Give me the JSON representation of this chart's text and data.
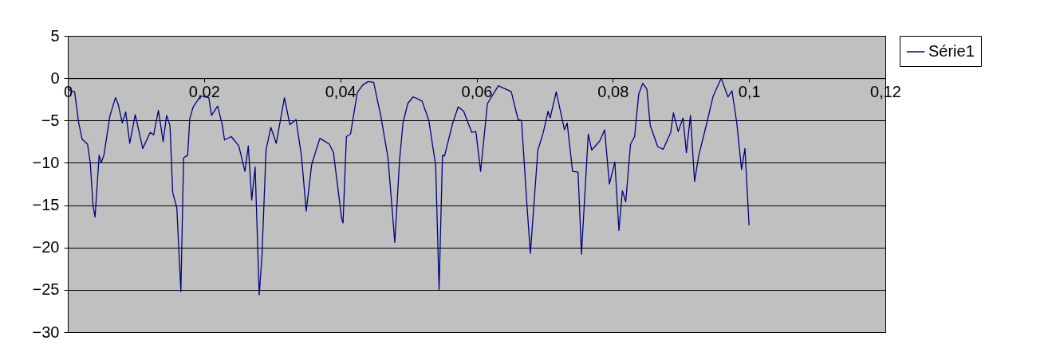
{
  "chart_data": {
    "type": "line",
    "xlim": [
      0,
      0.12
    ],
    "xticks": [
      {
        "value": 0,
        "label": "0"
      },
      {
        "value": 0.02,
        "label": "0,02"
      },
      {
        "value": 0.04,
        "label": "0,04"
      },
      {
        "value": 0.06,
        "label": "0,06"
      },
      {
        "value": 0.08,
        "label": "0,08"
      },
      {
        "value": 0.1,
        "label": "0,1"
      },
      {
        "value": 0.12,
        "label": "0,12"
      }
    ],
    "ylim": [
      -30,
      5
    ],
    "yticks": [
      -30,
      -25,
      -20,
      -15,
      -10,
      -5,
      0,
      5
    ],
    "grid": "y",
    "legend": "right",
    "marker": "none",
    "line_style": "solid",
    "series": [
      {
        "name": "Série1",
        "color": "#000080",
        "x": [
          0,
          0.0004,
          0.001,
          0.0016,
          0.0021,
          0.0029,
          0.0033,
          0.0037,
          0.004,
          0.0043,
          0.0046,
          0.0049,
          0.0053,
          0.0062,
          0.007,
          0.0074,
          0.008,
          0.0085,
          0.0091,
          0.0099,
          0.011,
          0.0121,
          0.0126,
          0.0133,
          0.014,
          0.0145,
          0.015,
          0.0154,
          0.016,
          0.0166,
          0.017,
          0.0176,
          0.0179,
          0.0184,
          0.0195,
          0.0207,
          0.0211,
          0.022,
          0.0227,
          0.023,
          0.024,
          0.0251,
          0.026,
          0.0265,
          0.027,
          0.0275,
          0.0281,
          0.0285,
          0.0291,
          0.0298,
          0.0306,
          0.0318,
          0.0326,
          0.0335,
          0.0343,
          0.035,
          0.0358,
          0.037,
          0.0384,
          0.039,
          0.0402,
          0.0404,
          0.0409,
          0.0415,
          0.0425,
          0.0433,
          0.0441,
          0.0449,
          0.046,
          0.047,
          0.048,
          0.0487,
          0.0492,
          0.0499,
          0.0507,
          0.052,
          0.053,
          0.054,
          0.0545,
          0.055,
          0.0553,
          0.0565,
          0.0573,
          0.0581,
          0.0593,
          0.0599,
          0.0606,
          0.0616,
          0.0632,
          0.0651,
          0.0661,
          0.0666,
          0.0674,
          0.0679,
          0.069,
          0.0698,
          0.0705,
          0.0708,
          0.0717,
          0.0729,
          0.0733,
          0.0741,
          0.0749,
          0.0754,
          0.0764,
          0.0769,
          0.0781,
          0.0788,
          0.0795,
          0.0803,
          0.0809,
          0.0814,
          0.0819,
          0.0826,
          0.0832,
          0.0838,
          0.0844,
          0.085,
          0.0855,
          0.0866,
          0.0874,
          0.0885,
          0.0889,
          0.0896,
          0.0903,
          0.0908,
          0.0914,
          0.092,
          0.0926,
          0.0938,
          0.0947,
          0.0959,
          0.0969,
          0.0975,
          0.0982,
          0.0989,
          0.0994,
          0.1
        ],
        "values": [
          -1.1,
          -1.5,
          -1.6,
          -5.3,
          -7.2,
          -7.8,
          -10.0,
          -15.0,
          -16.4,
          -12.8,
          -9.1,
          -10.0,
          -9.1,
          -4.4,
          -2.3,
          -3.1,
          -5.3,
          -4.0,
          -7.7,
          -4.3,
          -8.3,
          -6.4,
          -6.7,
          -3.8,
          -7.5,
          -4.4,
          -5.6,
          -13.5,
          -15.3,
          -25.2,
          -9.4,
          -9.1,
          -4.8,
          -3.4,
          -2.1,
          -2.3,
          -4.4,
          -3.3,
          -5.6,
          -7.3,
          -6.9,
          -8.0,
          -11.0,
          -8.0,
          -14.4,
          -10.5,
          -25.6,
          -21.0,
          -8.5,
          -5.8,
          -7.7,
          -2.3,
          -5.5,
          -4.9,
          -9.2,
          -15.7,
          -10.2,
          -7.1,
          -7.8,
          -8.8,
          -16.6,
          -17.1,
          -6.9,
          -6.6,
          -1.7,
          -0.8,
          -0.4,
          -0.5,
          -4.7,
          -9.4,
          -19.4,
          -9.7,
          -5.3,
          -3.0,
          -2.2,
          -2.7,
          -5.0,
          -10.3,
          -25.0,
          -9.1,
          -9.2,
          -5.3,
          -3.4,
          -3.9,
          -6.4,
          -6.3,
          -11.0,
          -3.0,
          -0.9,
          -1.6,
          -4.9,
          -5.0,
          -15.0,
          -20.7,
          -8.5,
          -6.4,
          -3.9,
          -4.7,
          -1.6,
          -6.1,
          -5.3,
          -11.0,
          -11.1,
          -20.8,
          -6.6,
          -8.5,
          -7.4,
          -6.1,
          -12.5,
          -9.9,
          -18.0,
          -13.3,
          -14.6,
          -7.8,
          -6.9,
          -1.9,
          -0.6,
          -1.3,
          -5.6,
          -8.1,
          -8.4,
          -6.4,
          -4.1,
          -6.3,
          -4.7,
          -8.8,
          -4.4,
          -12.2,
          -9.2,
          -5.3,
          -2.2,
          0.0,
          -2.2,
          -1.5,
          -5.3,
          -10.8,
          -8.3,
          -17.4
        ]
      }
    ]
  }
}
